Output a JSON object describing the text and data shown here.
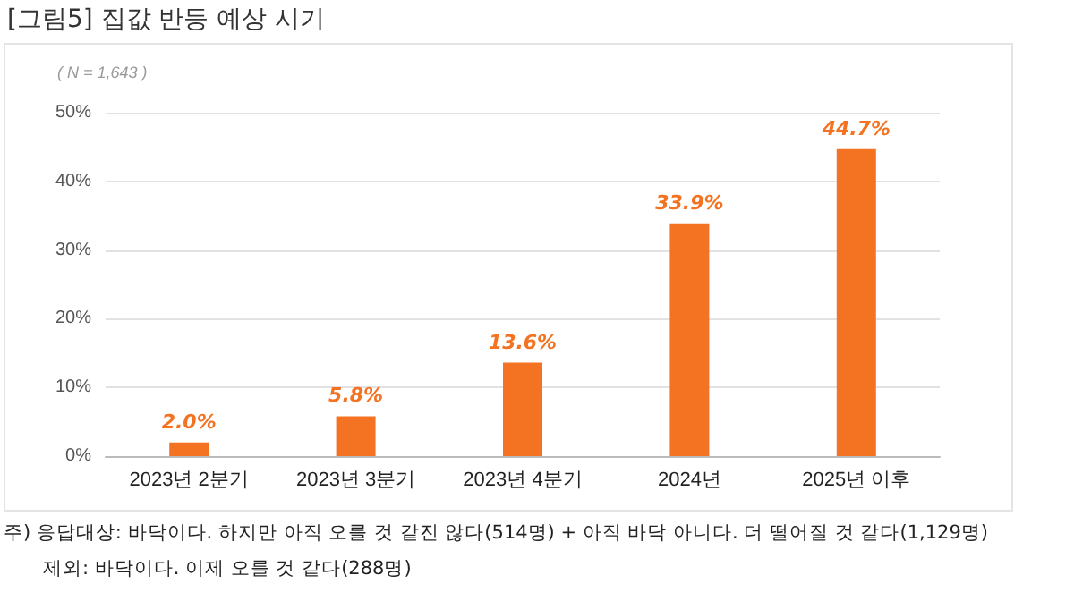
{
  "chart_data": {
    "type": "bar",
    "title": "[그림5] 집값 반등 예상 시기",
    "subtitle": "( N = 1,643 )",
    "categories": [
      "2023년 2분기",
      "2023년 3분기",
      "2023년 4분기",
      "2024년",
      "2025년 이후"
    ],
    "values": [
      2.0,
      5.8,
      13.6,
      33.9,
      44.7
    ],
    "color": "#f47322",
    "value_labels": [
      "2.0%",
      "5.8%",
      "13.6%",
      "33.9%",
      "44.7%"
    ],
    "ylim": [
      0,
      50
    ],
    "yticks": [
      {
        "value": 0,
        "label": "0%"
      },
      {
        "value": 10,
        "label": "10%"
      },
      {
        "value": 20,
        "label": "20%"
      },
      {
        "value": 30,
        "label": "30%"
      },
      {
        "value": 40,
        "label": "40%"
      },
      {
        "value": 50,
        "label": "50%"
      }
    ],
    "grid": "y",
    "annotations": [
      "주) 응답대상: 바닥이다. 하지만 아직 오를 것 같진 않다(514명) + 아직 바닥 아니다. 더 떨어질 것 같다(1,129명)",
      "제외: 바닥이다. 이제 오를 것 같다(288명)"
    ]
  }
}
